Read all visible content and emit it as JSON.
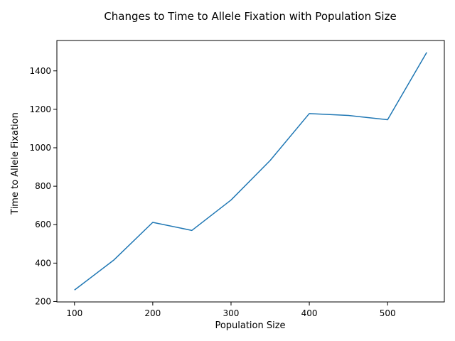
{
  "chart_data": {
    "type": "line",
    "title": "Changes to Time to Allele Fixation with Population Size",
    "xlabel": "Population Size",
    "ylabel": "Time to Allele Fixation",
    "x": [
      100,
      150,
      200,
      250,
      300,
      350,
      400,
      450,
      500,
      550
    ],
    "series": [
      {
        "values": [
          260,
          415,
          612,
          570,
          728,
          934,
          1178,
          1168,
          1146,
          1496
        ],
        "color": "#1f77b4"
      }
    ],
    "xlim": [
      77.5,
      572.5
    ],
    "ylim": [
      198,
      1558
    ],
    "xticks": [
      100,
      200,
      300,
      400,
      500
    ],
    "yticks": [
      200,
      400,
      600,
      800,
      1000,
      1200,
      1400
    ],
    "grid": false,
    "legend": "none"
  }
}
